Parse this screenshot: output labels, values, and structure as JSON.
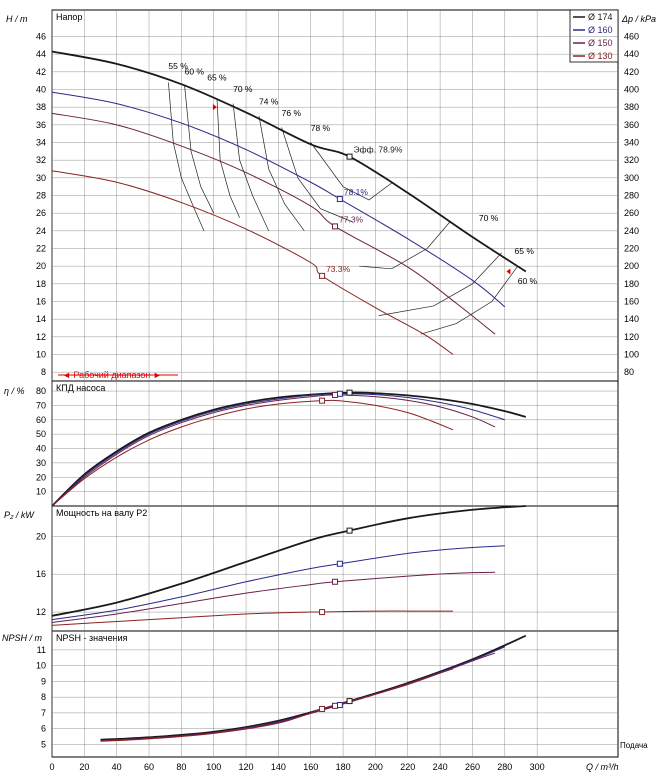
{
  "colors": {
    "d174": "#1a1a1a",
    "d160": "#2a2a8a",
    "d150": "#6a1f4a",
    "d130": "#8a2222",
    "grid": "#7a7a7a",
    "text": "#000000",
    "range": "#e00000"
  },
  "legend": [
    {
      "label": "Ø 174",
      "color": "#1a1a1a"
    },
    {
      "label": "Ø 160",
      "color": "#2a2a8a"
    },
    {
      "label": "Ø 150",
      "color": "#6a1f4a"
    },
    {
      "label": "Ø 130",
      "color": "#8a2222"
    }
  ],
  "x_axis": {
    "label_unit": "Q / m³/h",
    "label_caption": "Подача",
    "ticks": [
      0,
      20,
      40,
      60,
      80,
      100,
      120,
      140,
      160,
      180,
      200,
      220,
      240,
      260,
      280,
      300
    ],
    "max": 350
  },
  "range_label": "◄ Рабочий диапазон ►",
  "chart_data": [
    {
      "type": "line",
      "title": "Напор",
      "ylabel": "H / m",
      "ylabel_right": "Δp / kPa",
      "ylim": [
        7,
        49
      ],
      "yticks": [
        8,
        10,
        12,
        14,
        16,
        18,
        20,
        22,
        24,
        26,
        28,
        30,
        32,
        34,
        36,
        38,
        40,
        42,
        44,
        46
      ],
      "yticks_right": [
        80,
        100,
        120,
        140,
        160,
        180,
        200,
        220,
        240,
        260,
        280,
        300,
        320,
        340,
        360,
        380,
        400,
        420,
        440,
        460
      ],
      "series": [
        {
          "name": "Ø 174",
          "x": [
            0,
            40,
            80,
            120,
            160,
            184,
            220,
            260,
            293
          ],
          "y": [
            44.3,
            42.9,
            40.6,
            37.4,
            33.8,
            32.4,
            28.3,
            23.3,
            19.4
          ]
        },
        {
          "name": "Ø 160",
          "x": [
            0,
            40,
            80,
            120,
            160,
            178,
            220,
            260,
            280
          ],
          "y": [
            39.7,
            38.4,
            36.2,
            33.2,
            29.5,
            27.6,
            23.1,
            18.4,
            15.4
          ]
        },
        {
          "name": "Ø 150",
          "x": [
            0,
            40,
            80,
            120,
            160,
            175,
            220,
            250,
            274
          ],
          "y": [
            37.3,
            36.0,
            33.6,
            30.6,
            26.8,
            24.5,
            19.9,
            15.8,
            12.3
          ]
        },
        {
          "name": "Ø 130",
          "x": [
            0,
            40,
            80,
            120,
            160,
            167,
            200,
            230,
            248
          ],
          "y": [
            30.8,
            29.5,
            27.2,
            24.2,
            20.4,
            18.9,
            15.3,
            12.3,
            10.0
          ]
        }
      ],
      "bep_labels": [
        {
          "text": "Эфф.  78.9%",
          "x": 184,
          "y": 32.4,
          "series": "Ø 174"
        },
        {
          "text": "78.1%",
          "x": 178,
          "y": 27.6,
          "series": "Ø 160"
        },
        {
          "text": "77.3%",
          "x": 175,
          "y": 24.5,
          "series": "Ø 150"
        },
        {
          "text": "73.3%",
          "x": 167,
          "y": 18.9,
          "series": "Ø 130"
        }
      ],
      "efficiency_labels": [
        "55 %",
        "60 %",
        "65 %",
        "70 %",
        "74 %",
        "76 %",
        "78 %",
        "70 %",
        "65 %",
        "60 %"
      ],
      "operating_range": [
        0,
        293
      ]
    },
    {
      "type": "line",
      "title": "КПД насоса",
      "ylabel": "η / %",
      "ylim": [
        0,
        87
      ],
      "yticks": [
        10,
        20,
        30,
        40,
        50,
        60,
        70,
        80
      ],
      "series": [
        {
          "name": "Ø 174",
          "x": [
            0,
            20,
            40,
            60,
            80,
            100,
            120,
            140,
            160,
            184,
            200,
            220,
            240,
            260,
            280,
            293
          ],
          "y": [
            0,
            22,
            38,
            51,
            60,
            67,
            72,
            75.5,
            77.5,
            78.9,
            78.5,
            77,
            74.5,
            71,
            66,
            62
          ]
        },
        {
          "name": "Ø 160",
          "x": [
            0,
            20,
            40,
            60,
            80,
            100,
            120,
            140,
            160,
            178,
            200,
            220,
            240,
            260,
            280
          ],
          "y": [
            0,
            21,
            37,
            50,
            59,
            66,
            71,
            74.5,
            77,
            78.1,
            77.5,
            75.5,
            72,
            67,
            60
          ]
        },
        {
          "name": "Ø 150",
          "x": [
            0,
            20,
            40,
            60,
            80,
            100,
            120,
            140,
            160,
            175,
            200,
            220,
            240,
            260,
            274
          ],
          "y": [
            0,
            20,
            36,
            49,
            58,
            65,
            70,
            73.5,
            76,
            77.3,
            76,
            73.5,
            69,
            62,
            55
          ]
        },
        {
          "name": "Ø 130",
          "x": [
            0,
            20,
            40,
            60,
            80,
            100,
            120,
            140,
            167,
            180,
            200,
            220,
            235,
            248
          ],
          "y": [
            0,
            19,
            34,
            46,
            55,
            62,
            67.5,
            71,
            73.3,
            73,
            70,
            65,
            59,
            53
          ]
        }
      ]
    },
    {
      "type": "line",
      "title": "Мощность на валу P2",
      "ylabel": "P₂ / kW",
      "ylim": [
        10,
        23.2
      ],
      "yticks": [
        12,
        16,
        20
      ],
      "series": [
        {
          "name": "Ø 174",
          "x": [
            0,
            40,
            80,
            120,
            160,
            184,
            220,
            260,
            293
          ],
          "y": [
            11.6,
            13.0,
            15.0,
            17.3,
            19.6,
            20.6,
            21.9,
            22.8,
            23.2
          ]
        },
        {
          "name": "Ø 160",
          "x": [
            0,
            40,
            80,
            120,
            160,
            178,
            220,
            250,
            280
          ],
          "y": [
            11.2,
            12.2,
            13.6,
            15.2,
            16.6,
            17.1,
            18.2,
            18.7,
            19.0
          ]
        },
        {
          "name": "Ø 150",
          "x": [
            0,
            40,
            80,
            120,
            160,
            175,
            220,
            250,
            274
          ],
          "y": [
            10.9,
            11.8,
            12.9,
            14.0,
            14.9,
            15.2,
            15.8,
            16.1,
            16.2
          ]
        },
        {
          "name": "Ø 130",
          "x": [
            0,
            40,
            80,
            120,
            160,
            167,
            200,
            230,
            248
          ],
          "y": [
            10.6,
            11.0,
            11.4,
            11.8,
            12.0,
            12.0,
            12.1,
            12.1,
            12.1
          ]
        }
      ]
    },
    {
      "type": "line",
      "title": "NPSH - значения",
      "ylabel": "NPSH / m",
      "ylim": [
        4.2,
        12.2
      ],
      "yticks": [
        5,
        6,
        7,
        8,
        9,
        10,
        11
      ],
      "series": [
        {
          "name": "Ø 174",
          "x": [
            30,
            60,
            100,
            140,
            184,
            220,
            260,
            293
          ],
          "y": [
            5.3,
            5.45,
            5.8,
            6.5,
            7.75,
            8.9,
            10.4,
            11.9
          ]
        },
        {
          "name": "Ø 160",
          "x": [
            30,
            60,
            100,
            140,
            178,
            220,
            260,
            280
          ],
          "y": [
            5.25,
            5.4,
            5.75,
            6.45,
            7.5,
            8.85,
            10.35,
            11.2
          ]
        },
        {
          "name": "Ø 150",
          "x": [
            30,
            60,
            100,
            140,
            175,
            220,
            260,
            274
          ],
          "y": [
            5.25,
            5.4,
            5.75,
            6.4,
            7.45,
            8.8,
            10.3,
            10.8
          ]
        },
        {
          "name": "Ø 130",
          "x": [
            30,
            60,
            100,
            140,
            167,
            200,
            230,
            248
          ],
          "y": [
            5.2,
            5.35,
            5.7,
            6.35,
            7.25,
            8.2,
            9.2,
            9.8
          ]
        }
      ]
    }
  ]
}
